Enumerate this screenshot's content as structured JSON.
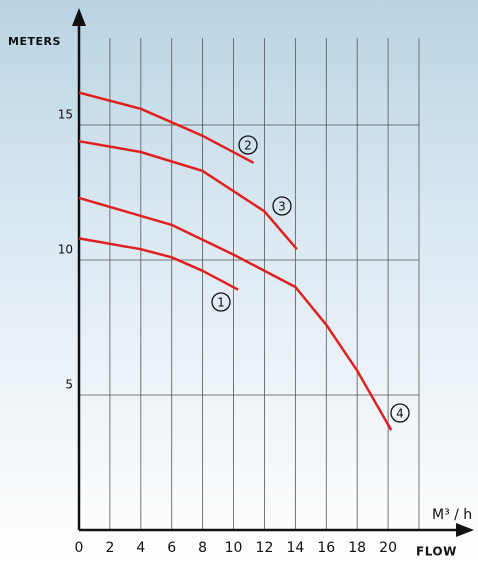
{
  "chart_data": {
    "type": "line",
    "y_label": "METERS",
    "x_label": "M³ / h",
    "x_caption": "FLOW",
    "xlim": [
      0,
      22
    ],
    "ylim": [
      0,
      18
    ],
    "xticks": [
      0,
      2,
      4,
      6,
      8,
      10,
      12,
      14,
      16,
      18,
      20
    ],
    "yticks": [
      5,
      10,
      15
    ],
    "grid": true,
    "series": [
      {
        "name": "1",
        "color": "#e02020",
        "x": [
          0,
          4,
          6,
          8,
          10.3
        ],
        "values": [
          10.8,
          10.4,
          10.1,
          9.6,
          8.9
        ]
      },
      {
        "name": "2",
        "color": "#e02020",
        "x": [
          0,
          4,
          8,
          11.3
        ],
        "values": [
          16.2,
          15.6,
          14.6,
          13.6
        ]
      },
      {
        "name": "3",
        "color": "#e02020",
        "x": [
          0,
          4,
          8,
          12,
          14.1
        ],
        "values": [
          14.4,
          14.0,
          13.3,
          11.8,
          10.4
        ]
      },
      {
        "name": "4",
        "color": "#e02020",
        "x": [
          0,
          6,
          10,
          14,
          16,
          18,
          20.2
        ],
        "values": [
          12.3,
          11.3,
          10.2,
          9.0,
          7.6,
          5.9,
          3.7
        ]
      }
    ]
  }
}
